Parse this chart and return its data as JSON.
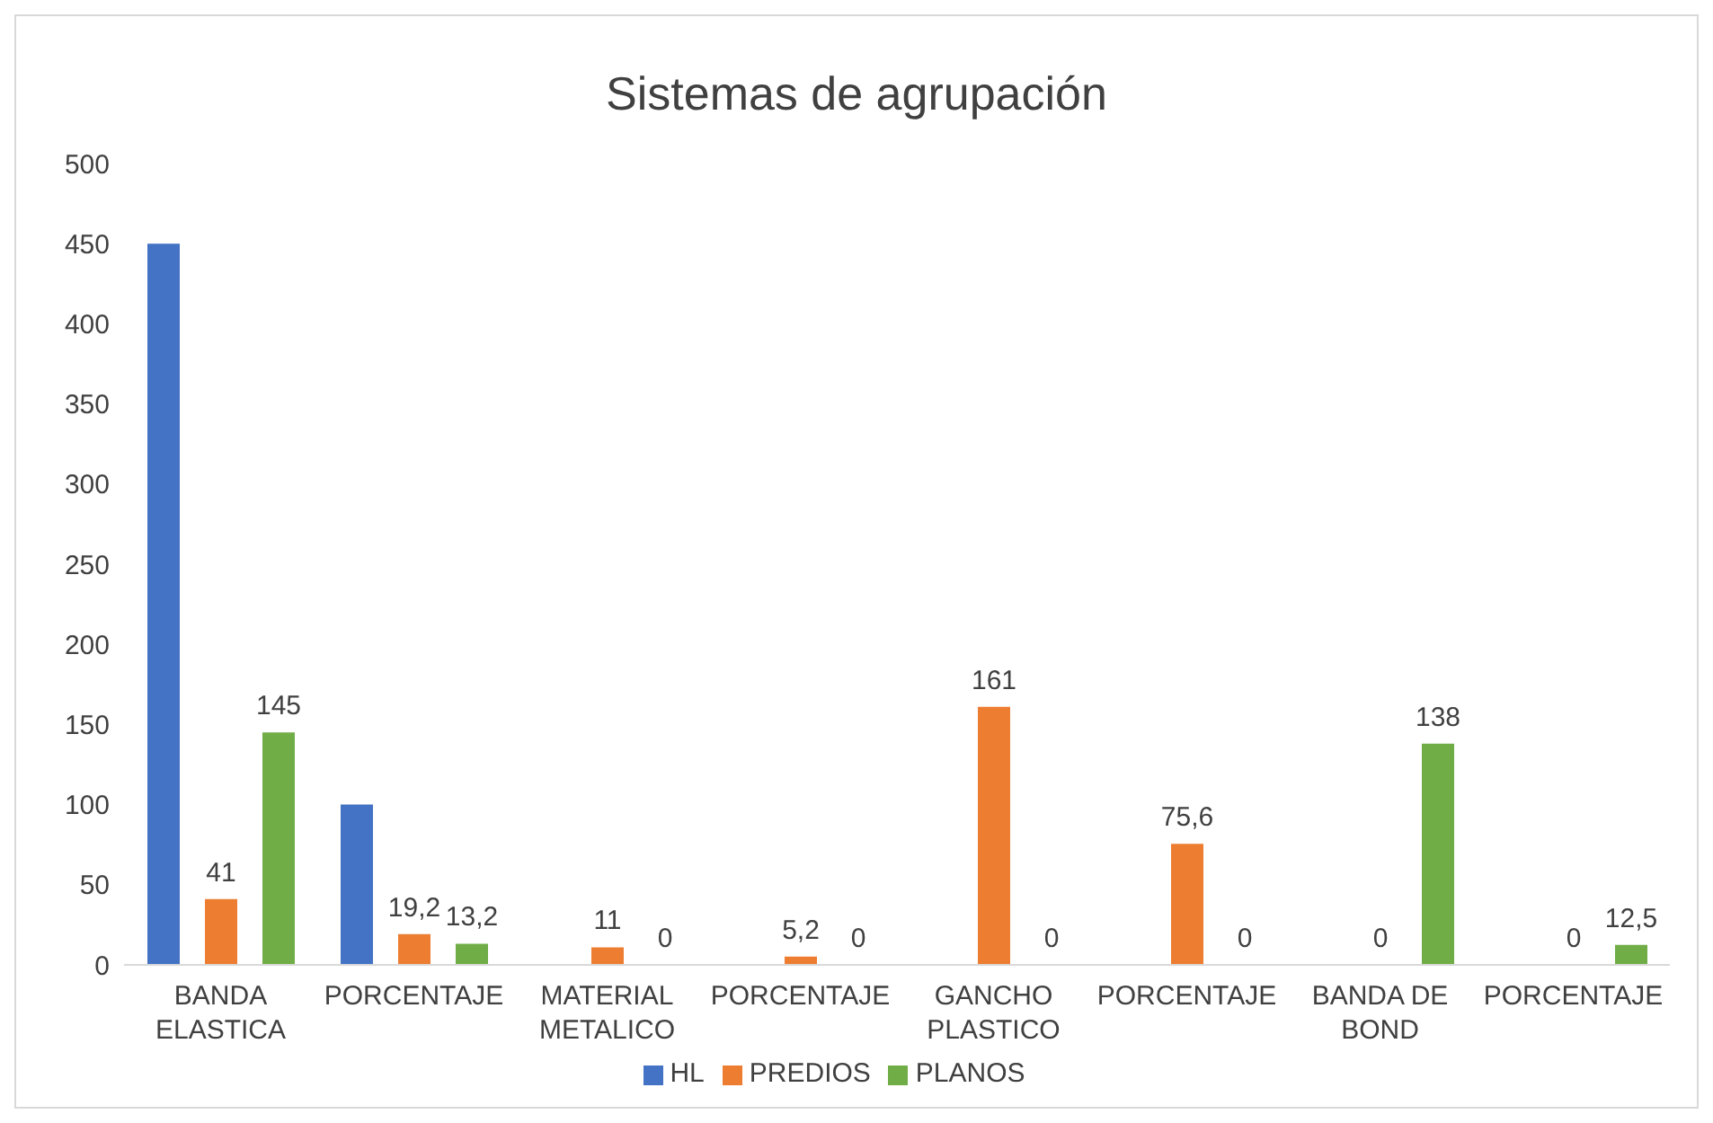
{
  "chart_data": {
    "type": "bar",
    "title": "Sistemas de agrupación",
    "categories": [
      "BANDA ELASTICA",
      "PORCENTAJE",
      "MATERIAL METALICO",
      "PORCENTAJE",
      "GANCHO PLASTICO",
      "PORCENTAJE",
      "BANDA DE BOND",
      "PORCENTAJE"
    ],
    "series": [
      {
        "name": "HL",
        "color": "#4472c4",
        "values": [
          450,
          100,
          null,
          null,
          null,
          null,
          null,
          null
        ]
      },
      {
        "name": "PREDIOS",
        "color": "#ed7d31",
        "values": [
          41,
          19.2,
          11,
          5.2,
          161,
          75.6,
          0,
          0
        ],
        "value_labels": [
          "41",
          "19,2",
          "11",
          "5,2",
          "161",
          "75,6",
          "0",
          "0"
        ]
      },
      {
        "name": "PLANOS",
        "color": "#70ad47",
        "values": [
          145,
          13.2,
          0,
          0,
          0,
          0,
          138,
          12.5
        ],
        "value_labels": [
          "145",
          "13,2",
          "0",
          "0",
          "0",
          "0",
          "138",
          "12,5"
        ]
      }
    ],
    "ylim": [
      0,
      500
    ],
    "yticks": [
      0,
      50,
      100,
      150,
      200,
      250,
      300,
      350,
      400,
      450,
      500
    ],
    "grid": false,
    "legend": "bottom"
  }
}
